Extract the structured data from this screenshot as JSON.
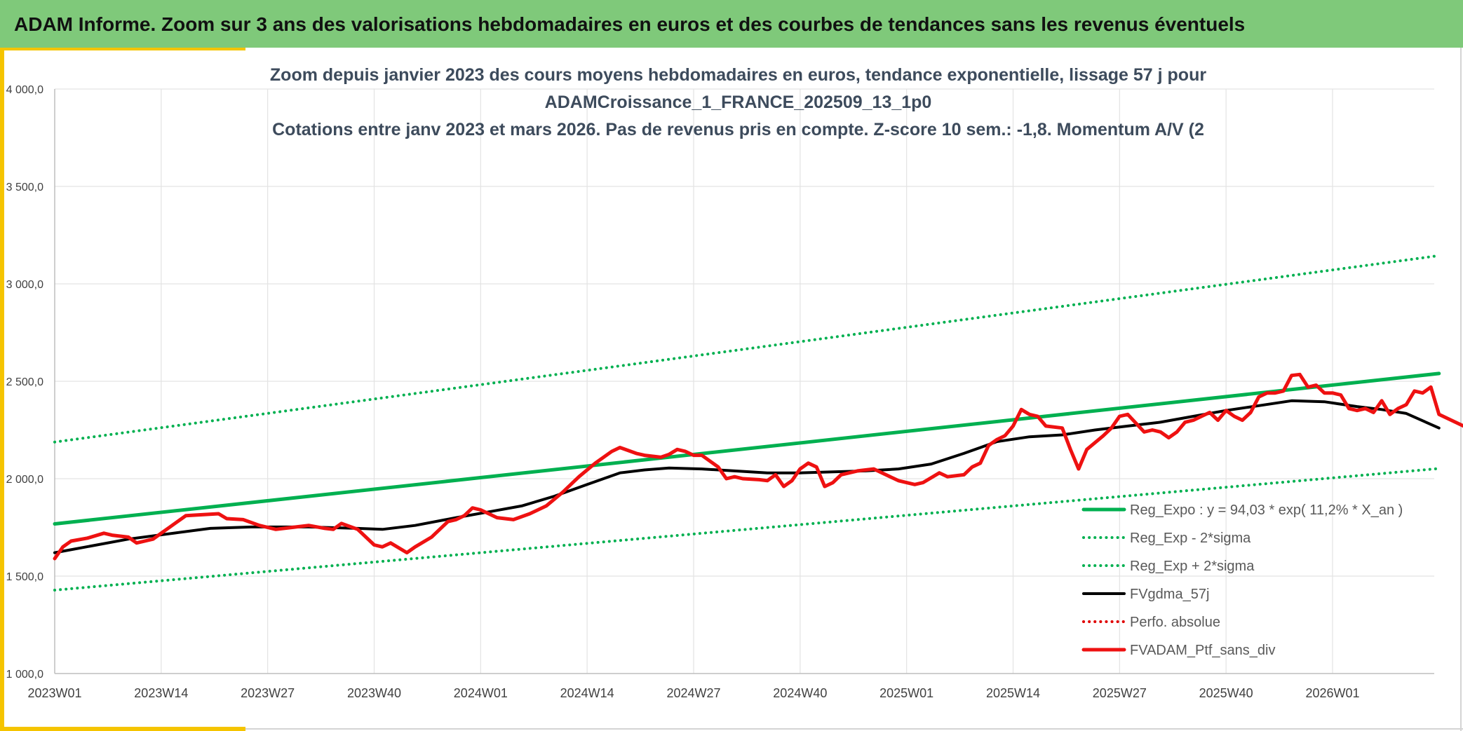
{
  "header": {
    "title": "ADAM Informe. Zoom sur 3 ans des valorisations hebdomadaires en euros et des courbes de tendances sans les revenus éventuels"
  },
  "colors": {
    "header_bg": "#7fc97a",
    "accent": "#f5c400",
    "trend_green": "#00b050",
    "smoothed_black": "#000000",
    "portfolio_red": "#ee1111",
    "perf_red": "#e00000",
    "grid": "#e3e3e3",
    "title_text": "#3d4b5c"
  },
  "chart_data": {
    "type": "line",
    "title": [
      "Zoom depuis janvier 2023 des cours moyens hebdomadaires en euros, tendance exponentielle, lissage 57 j pour",
      "ADAMCroissance_1_FRANCE_202509_13_1p0",
      "Cotations entre janv 2023 et mars 2026. Pas de revenus pris en compte. Z-score 10 sem.: -1,8. Momentum A/V (2"
    ],
    "xlabel": "",
    "ylabel": "",
    "ylim": [
      1000,
      4000
    ],
    "grid": true,
    "legend_position": "bottom-right",
    "x_ticks": [
      "2023W01",
      "2023W14",
      "2023W27",
      "2023W40",
      "2024W01",
      "2024W14",
      "2024W27",
      "2024W40",
      "2025W01",
      "2025W14",
      "2025W27",
      "2025W40",
      "2026W01"
    ],
    "y_ticks": [
      "1 000,0",
      "1 500,0",
      "2 000,0",
      "2 500,0",
      "3 000,0",
      "3 500,0",
      "4 000,0"
    ],
    "y_tick_values": [
      1000,
      1500,
      2000,
      2500,
      3000,
      3500,
      4000
    ],
    "series": [
      {
        "name": "Reg_Expo : y = 94,03 * exp( 11,2% *  X_an )",
        "color": "#00b050",
        "style": "solid",
        "width": 5,
        "points": [
          [
            1,
            1768
          ],
          [
            170,
            2540
          ]
        ]
      },
      {
        "name": "Reg_Exp - 2*sigma",
        "color": "#00b050",
        "style": "dotted",
        "width": 4,
        "points": [
          [
            1,
            1428
          ],
          [
            170,
            2052
          ]
        ]
      },
      {
        "name": "Reg_Exp + 2*sigma",
        "color": "#00b050",
        "style": "dotted",
        "width": 4,
        "points": [
          [
            1,
            2188
          ],
          [
            170,
            3145
          ]
        ]
      },
      {
        "name": "FVgdma_57j",
        "color": "#000000",
        "style": "solid",
        "width": 4,
        "points": [
          [
            1,
            1620
          ],
          [
            10,
            1690
          ],
          [
            20,
            1745
          ],
          [
            25,
            1752
          ],
          [
            32,
            1752
          ],
          [
            38,
            1745
          ],
          [
            41,
            1740
          ],
          [
            45,
            1760
          ],
          [
            50,
            1800
          ],
          [
            54,
            1830
          ],
          [
            58,
            1860
          ],
          [
            62,
            1910
          ],
          [
            66,
            1970
          ],
          [
            70,
            2030
          ],
          [
            73,
            2045
          ],
          [
            76,
            2055
          ],
          [
            80,
            2050
          ],
          [
            84,
            2040
          ],
          [
            88,
            2030
          ],
          [
            92,
            2030
          ],
          [
            96,
            2035
          ],
          [
            100,
            2040
          ],
          [
            104,
            2050
          ],
          [
            108,
            2075
          ],
          [
            112,
            2130
          ],
          [
            116,
            2190
          ],
          [
            120,
            2215
          ],
          [
            124,
            2225
          ],
          [
            128,
            2250
          ],
          [
            132,
            2270
          ],
          [
            136,
            2290
          ],
          [
            140,
            2320
          ],
          [
            144,
            2350
          ],
          [
            148,
            2375
          ],
          [
            152,
            2400
          ],
          [
            156,
            2395
          ],
          [
            160,
            2370
          ],
          [
            163,
            2355
          ],
          [
            166,
            2335
          ],
          [
            170,
            2260
          ]
        ]
      },
      {
        "name": "Perfo. absolue",
        "color": "#e00000",
        "style": "dotted",
        "width": 4,
        "points": []
      },
      {
        "name": "FVADAM_Ptf_sans_div",
        "color": "#ee1111",
        "style": "solid",
        "width": 5,
        "points": [
          [
            1,
            1590
          ],
          [
            2,
            1650
          ],
          [
            3,
            1680
          ],
          [
            5,
            1695
          ],
          [
            7,
            1720
          ],
          [
            8,
            1710
          ],
          [
            10,
            1700
          ],
          [
            11,
            1670
          ],
          [
            12,
            1680
          ],
          [
            13,
            1690
          ],
          [
            14,
            1720
          ],
          [
            15,
            1750
          ],
          [
            17,
            1810
          ],
          [
            19,
            1815
          ],
          [
            21,
            1820
          ],
          [
            22,
            1795
          ],
          [
            24,
            1790
          ],
          [
            26,
            1760
          ],
          [
            28,
            1740
          ],
          [
            30,
            1750
          ],
          [
            32,
            1760
          ],
          [
            34,
            1745
          ],
          [
            35,
            1740
          ],
          [
            36,
            1770
          ],
          [
            38,
            1740
          ],
          [
            40,
            1660
          ],
          [
            41,
            1650
          ],
          [
            42,
            1670
          ],
          [
            44,
            1620
          ],
          [
            45,
            1650
          ],
          [
            47,
            1700
          ],
          [
            49,
            1780
          ],
          [
            50,
            1790
          ],
          [
            51,
            1810
          ],
          [
            52,
            1850
          ],
          [
            53,
            1840
          ],
          [
            55,
            1800
          ],
          [
            57,
            1790
          ],
          [
            59,
            1820
          ],
          [
            61,
            1860
          ],
          [
            63,
            1930
          ],
          [
            65,
            2010
          ],
          [
            67,
            2080
          ],
          [
            69,
            2140
          ],
          [
            70,
            2160
          ],
          [
            72,
            2130
          ],
          [
            73,
            2120
          ],
          [
            75,
            2110
          ],
          [
            76,
            2125
          ],
          [
            77,
            2150
          ],
          [
            78,
            2140
          ],
          [
            79,
            2120
          ],
          [
            80,
            2120
          ],
          [
            81,
            2090
          ],
          [
            82,
            2060
          ],
          [
            83,
            2000
          ],
          [
            84,
            2010
          ],
          [
            85,
            2000
          ],
          [
            87,
            1995
          ],
          [
            88,
            1990
          ],
          [
            89,
            2020
          ],
          [
            90,
            1960
          ],
          [
            91,
            1990
          ],
          [
            92,
            2050
          ],
          [
            93,
            2080
          ],
          [
            94,
            2060
          ],
          [
            95,
            1960
          ],
          [
            96,
            1980
          ],
          [
            97,
            2020
          ],
          [
            99,
            2040
          ],
          [
            101,
            2050
          ],
          [
            102,
            2030
          ],
          [
            104,
            1990
          ],
          [
            106,
            1970
          ],
          [
            107,
            1980
          ],
          [
            109,
            2030
          ],
          [
            110,
            2010
          ],
          [
            112,
            2020
          ],
          [
            113,
            2060
          ],
          [
            114,
            2080
          ],
          [
            115,
            2170
          ],
          [
            116,
            2200
          ],
          [
            117,
            2220
          ],
          [
            118,
            2270
          ],
          [
            119,
            2355
          ],
          [
            120,
            2330
          ],
          [
            121,
            2320
          ],
          [
            122,
            2270
          ],
          [
            124,
            2260
          ],
          [
            125,
            2150
          ],
          [
            126,
            2050
          ],
          [
            127,
            2150
          ],
          [
            129,
            2220
          ],
          [
            130,
            2260
          ],
          [
            131,
            2320
          ],
          [
            132,
            2330
          ],
          [
            134,
            2240
          ],
          [
            135,
            2250
          ],
          [
            136,
            2240
          ],
          [
            137,
            2210
          ],
          [
            138,
            2240
          ],
          [
            139,
            2290
          ],
          [
            140,
            2300
          ],
          [
            141,
            2320
          ],
          [
            142,
            2340
          ],
          [
            143,
            2300
          ],
          [
            144,
            2350
          ],
          [
            145,
            2320
          ],
          [
            146,
            2300
          ],
          [
            147,
            2340
          ],
          [
            148,
            2420
          ],
          [
            149,
            2440
          ],
          [
            150,
            2440
          ],
          [
            151,
            2450
          ],
          [
            152,
            2530
          ],
          [
            153,
            2535
          ],
          [
            154,
            2470
          ],
          [
            155,
            2480
          ],
          [
            156,
            2440
          ],
          [
            157,
            2440
          ],
          [
            158,
            2430
          ],
          [
            159,
            2360
          ],
          [
            160,
            2350
          ],
          [
            161,
            2360
          ],
          [
            162,
            2340
          ],
          [
            163,
            2400
          ],
          [
            164,
            2330
          ],
          [
            165,
            2360
          ],
          [
            166,
            2380
          ],
          [
            167,
            2450
          ],
          [
            168,
            2440
          ],
          [
            169,
            2470
          ],
          [
            170,
            2330
          ],
          [
            172,
            2290
          ],
          [
            174,
            2250
          ],
          [
            175,
            2170
          ]
        ]
      }
    ]
  }
}
